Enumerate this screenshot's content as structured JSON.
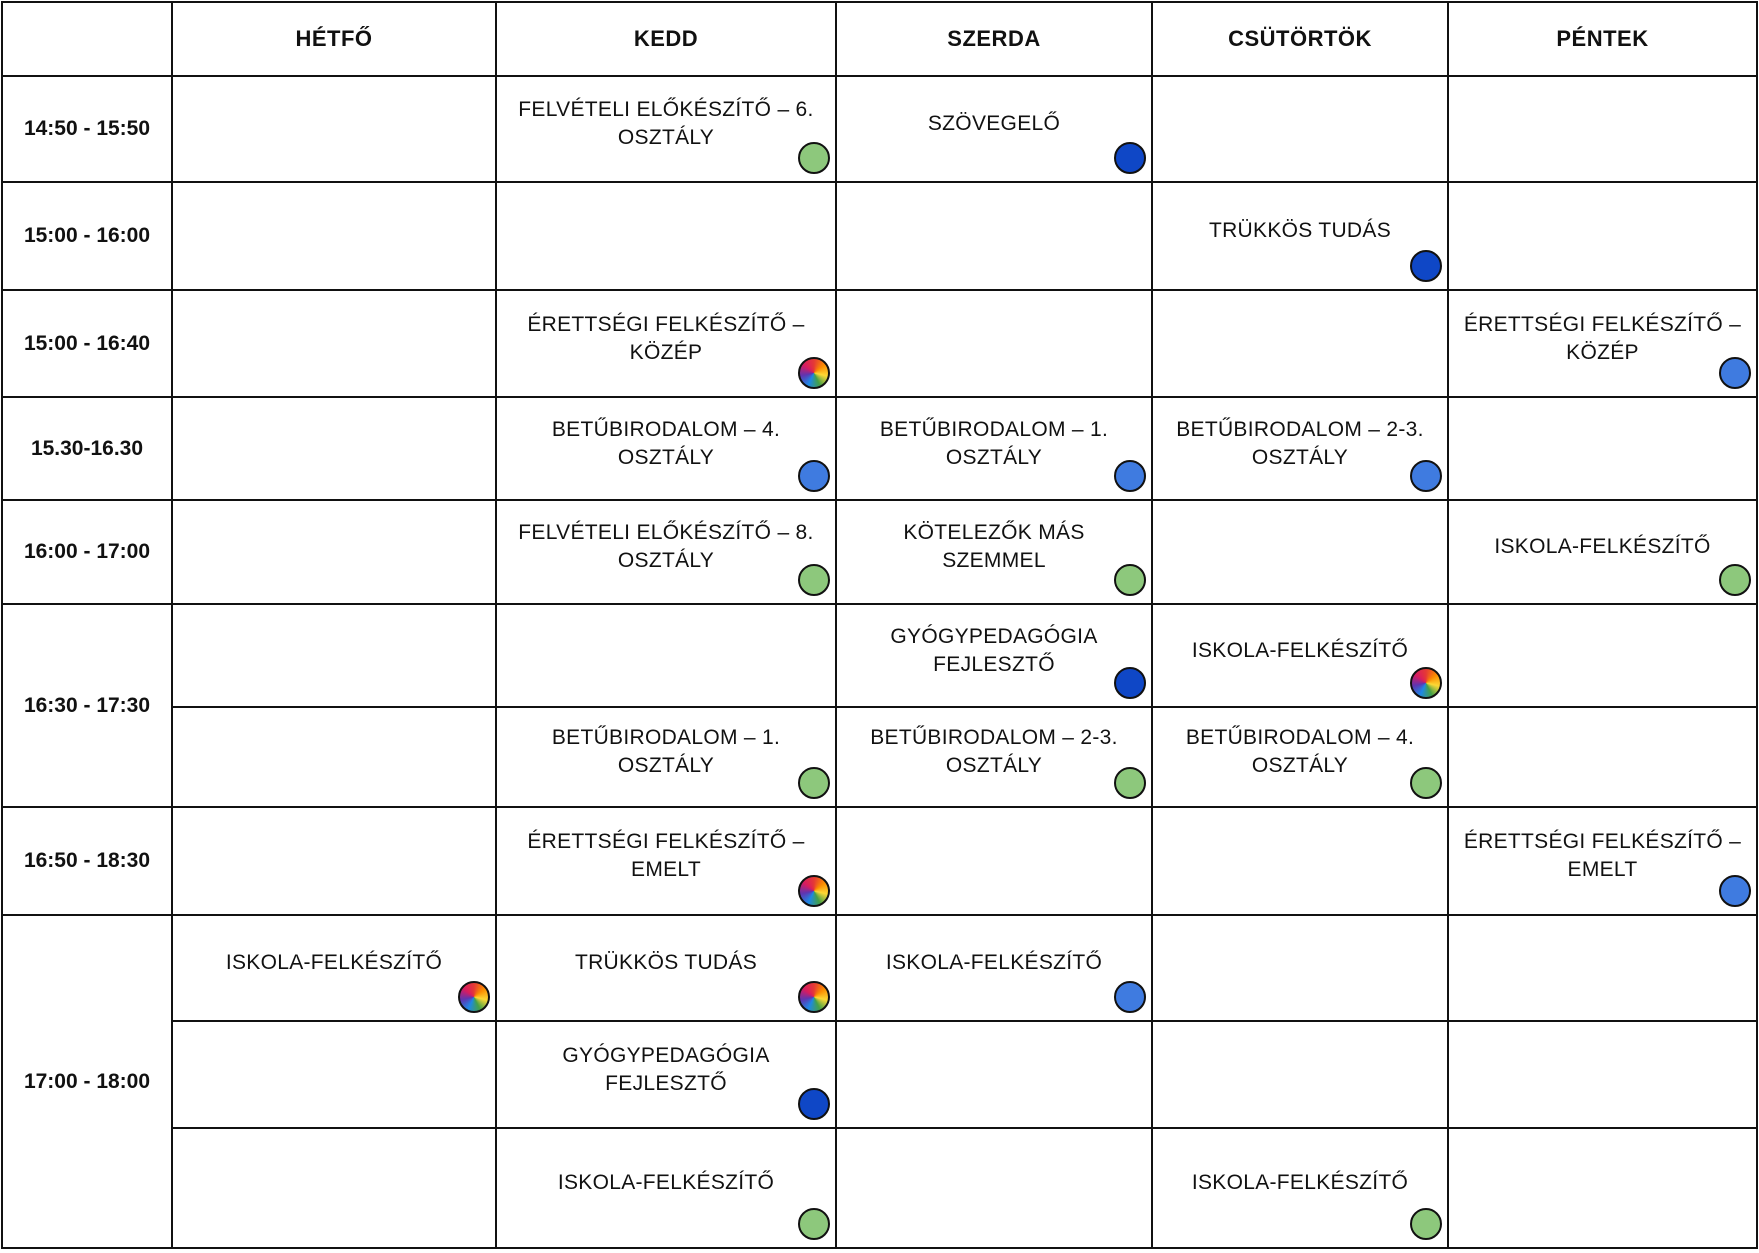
{
  "days": [
    "HÉTFŐ",
    "KEDD",
    "SZERDA",
    "CSÜTÖRTÖK",
    "PÉNTEK"
  ],
  "times": [
    "14:50 - 15:50",
    "15:00 - 16:00",
    "15:00 - 16:40",
    "15.30-16.30",
    "16:00 - 17:00",
    "16:30 - 17:30",
    "16:50 - 18:30",
    "17:00 - 18:00"
  ],
  "dot_colors": {
    "green": "#8dc87c",
    "dark-blue": "#0f47c6",
    "blue": "#3f7be0",
    "rainbow": "multicolor"
  },
  "classes": [
    {
      "row": 0,
      "day": 1,
      "title": "FELVÉTELI ELŐKÉSZÍTŐ – 6. OSZTÁLY",
      "dot": "green"
    },
    {
      "row": 0,
      "day": 2,
      "title": "SZÖVEGELŐ",
      "dot": "dark-blue"
    },
    {
      "row": 1,
      "day": 3,
      "title": "TRÜKKÖS TUDÁS",
      "dot": "dark-blue"
    },
    {
      "row": 2,
      "day": 1,
      "title": "ÉRETTSÉGI FELKÉSZÍTŐ – KÖZÉP",
      "dot": "rainbow"
    },
    {
      "row": 2,
      "day": 4,
      "title": "ÉRETTSÉGI FELKÉSZÍTŐ – KÖZÉP",
      "dot": "blue"
    },
    {
      "row": 3,
      "day": 1,
      "title": "BETŰBIRODALOM – 4. OSZTÁLY",
      "dot": "blue"
    },
    {
      "row": 3,
      "day": 2,
      "title": "BETŰBIRODALOM – 1. OSZTÁLY",
      "dot": "blue"
    },
    {
      "row": 3,
      "day": 3,
      "title": "BETŰBIRODALOM – 2-3. OSZTÁLY",
      "dot": "blue"
    },
    {
      "row": 4,
      "day": 1,
      "title": "FELVÉTELI ELŐKÉSZÍTŐ – 8. OSZTÁLY",
      "dot": "green"
    },
    {
      "row": 4,
      "day": 2,
      "title": "KÖTELEZŐK MÁS SZEMMEL",
      "dot": "green"
    },
    {
      "row": 4,
      "day": 4,
      "title": "ISKOLA-FELKÉSZÍTŐ",
      "dot": "green"
    },
    {
      "row": 5,
      "day": 2,
      "title": "GYÓGYPEDAGÓGIA FEJLESZTŐ",
      "dot": "dark-blue"
    },
    {
      "row": 5,
      "day": 3,
      "title": "ISKOLA-FELKÉSZÍTŐ",
      "dot": "rainbow"
    },
    {
      "row": 6,
      "day": 1,
      "title": "BETŰBIRODALOM – 1. OSZTÁLY",
      "dot": "green"
    },
    {
      "row": 6,
      "day": 2,
      "title": "BETŰBIRODALOM – 2-3. OSZTÁLY",
      "dot": "green"
    },
    {
      "row": 6,
      "day": 3,
      "title": "BETŰBIRODALOM – 4. OSZTÁLY",
      "dot": "green"
    },
    {
      "row": 7,
      "day": 1,
      "title": "ÉRETTSÉGI FELKÉSZÍTŐ – EMELT",
      "dot": "rainbow"
    },
    {
      "row": 7,
      "day": 4,
      "title": "ÉRETTSÉGI FELKÉSZÍTŐ – EMELT",
      "dot": "blue"
    },
    {
      "row": 8,
      "day": 0,
      "title": "ISKOLA-FELKÉSZÍTŐ",
      "dot": "rainbow"
    },
    {
      "row": 8,
      "day": 1,
      "title": "TRÜKKÖS TUDÁS",
      "dot": "rainbow"
    },
    {
      "row": 8,
      "day": 2,
      "title": "ISKOLA-FELKÉSZÍTŐ",
      "dot": "blue"
    },
    {
      "row": 9,
      "day": 1,
      "title": "GYÓGYPEDAGÓGIA FEJLESZTŐ",
      "dot": "dark-blue"
    },
    {
      "row": 10,
      "day": 1,
      "title": "ISKOLA-FELKÉSZÍTŐ",
      "dot": "green"
    },
    {
      "row": 10,
      "day": 3,
      "title": "ISKOLA-FELKÉSZÍTŐ",
      "dot": "green"
    }
  ]
}
